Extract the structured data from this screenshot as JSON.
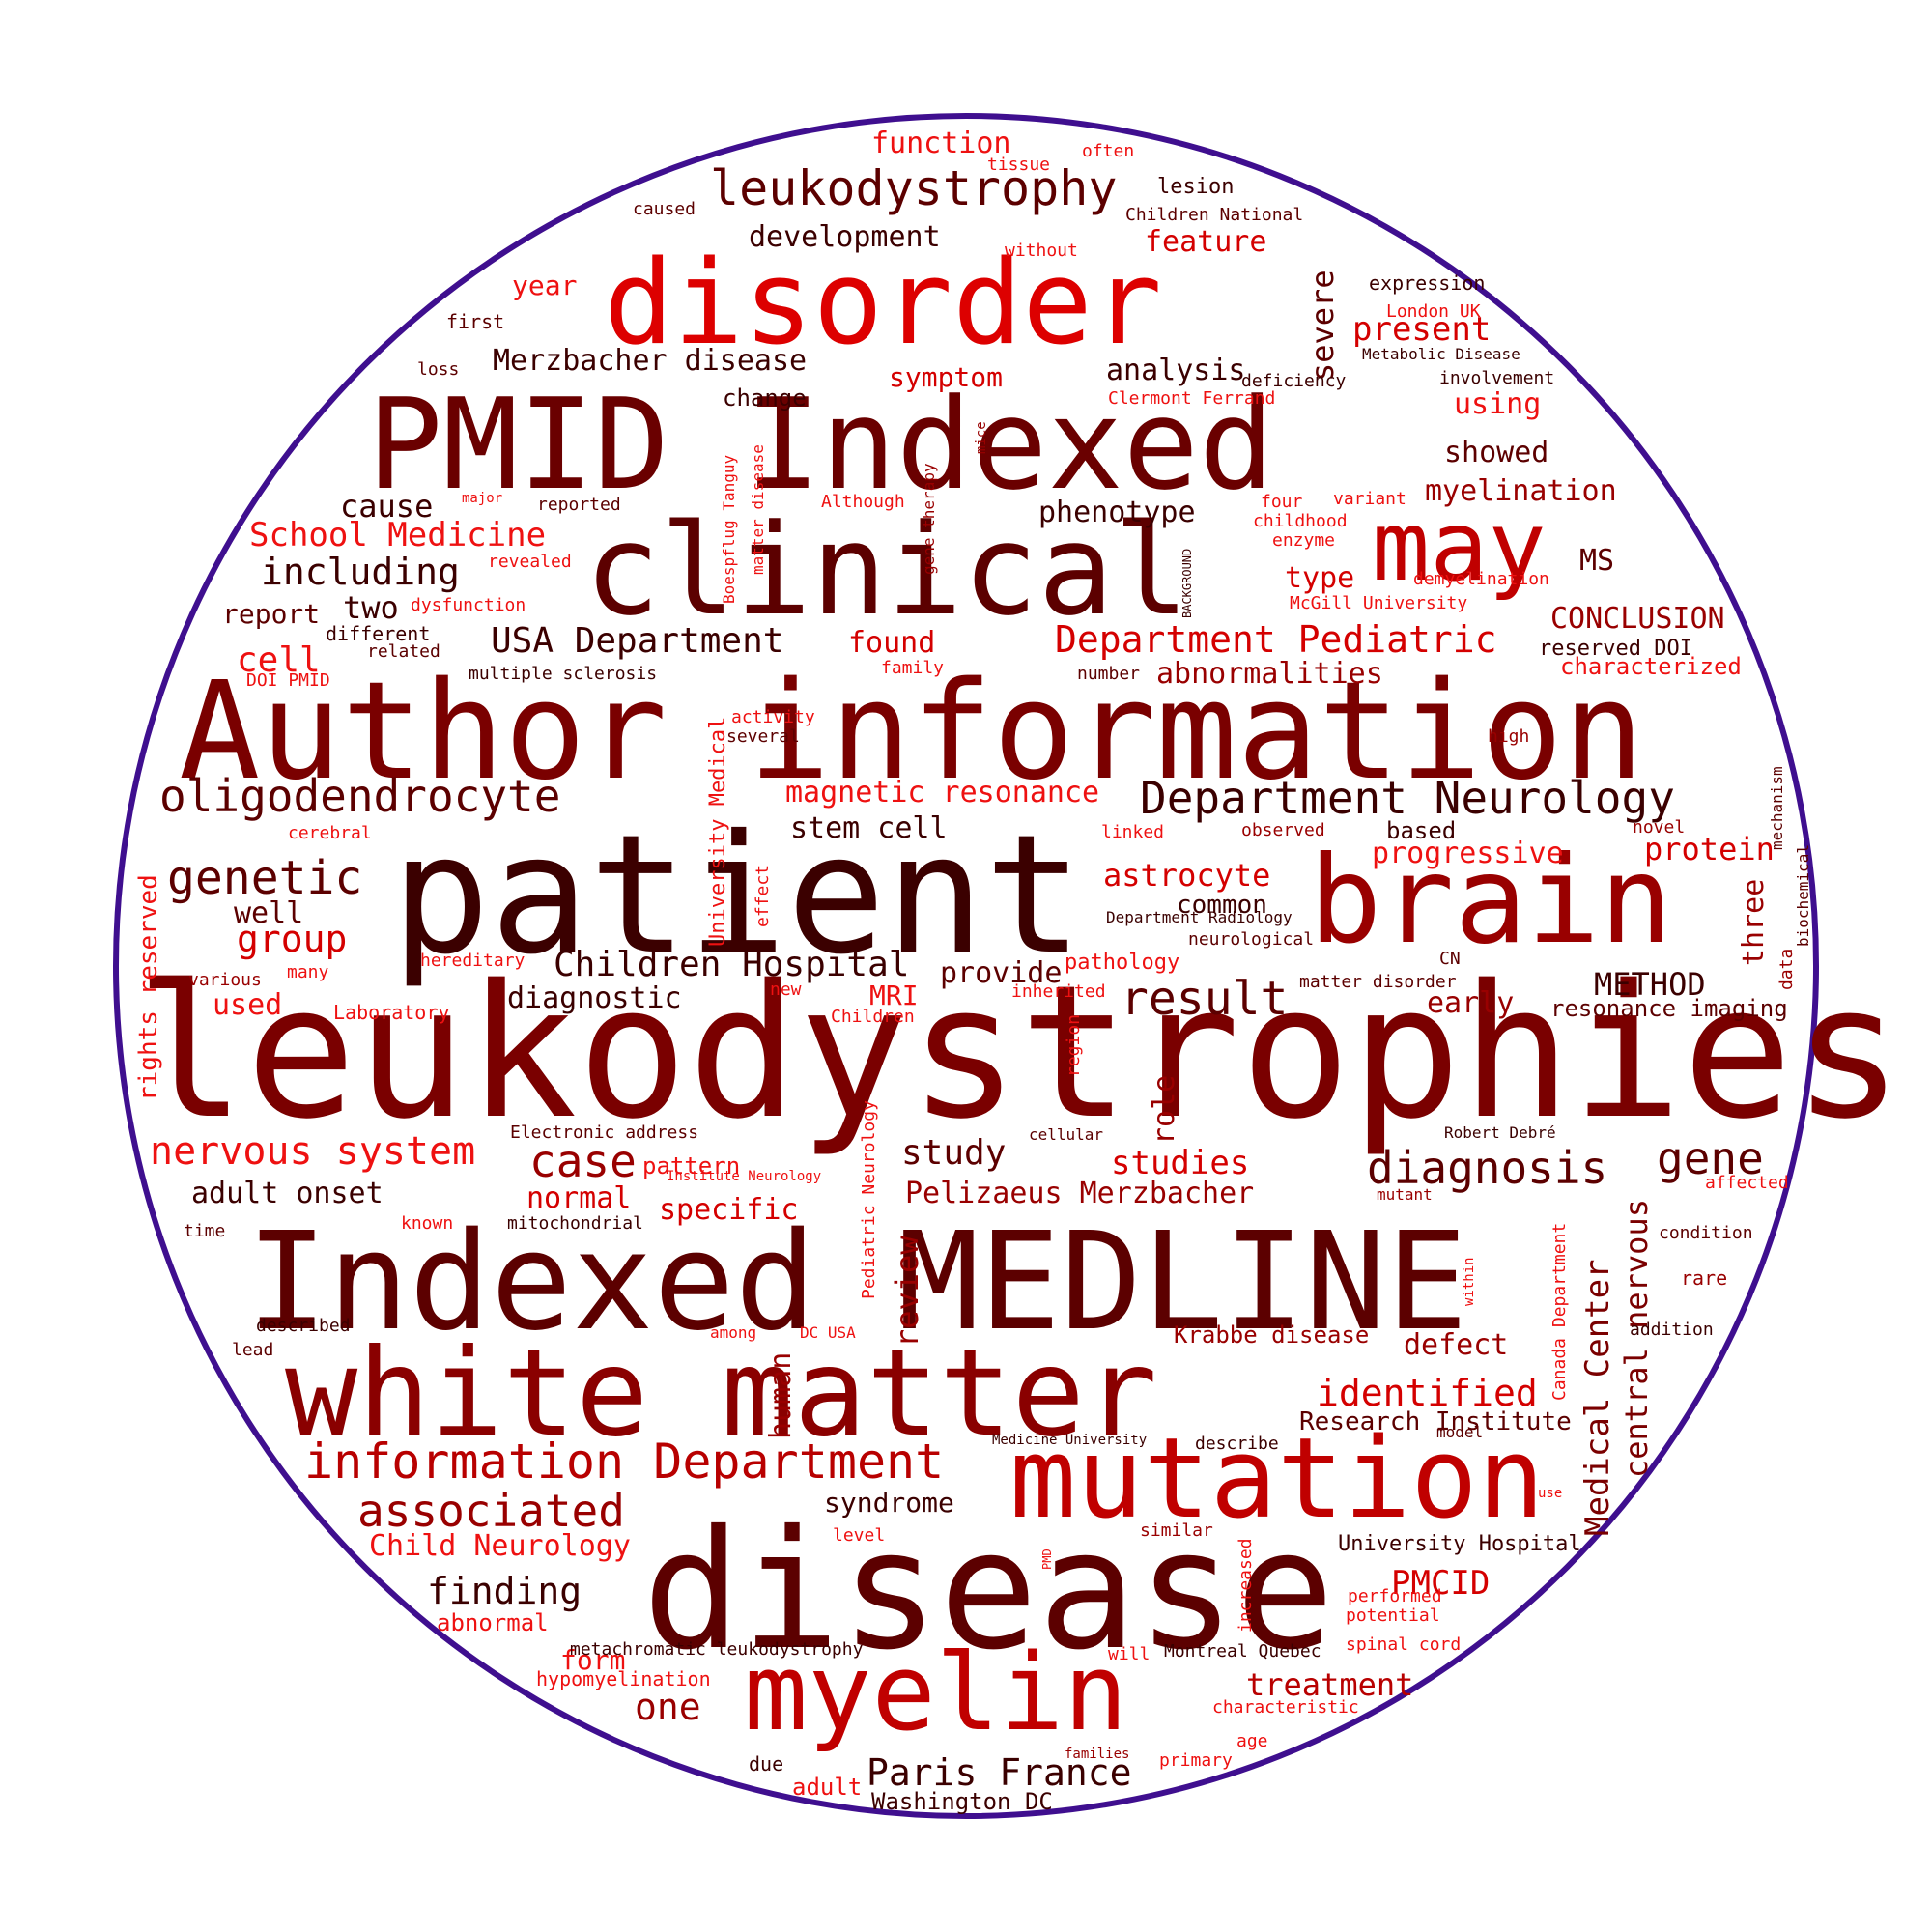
{
  "outline_color": "#3f0f8f",
  "palette": [
    "#3b0000",
    "#5c0000",
    "#7a0000",
    "#990000",
    "#b80000",
    "#d40000",
    "#ee1111",
    "#ff2222"
  ],
  "words": [
    {
      "text": "leukodystrophies",
      "color": "#7a0000"
    },
    {
      "text": "patient",
      "color": "#3b0000"
    },
    {
      "text": "disease",
      "color": "#5c0000"
    },
    {
      "text": "Author information",
      "color": "#7a0000"
    },
    {
      "text": "Indexed MEDLINE",
      "color": "#5c0000"
    },
    {
      "text": "PMID Indexed",
      "color": "#6a0000"
    },
    {
      "text": "clinical",
      "color": "#5c0000"
    },
    {
      "text": "white matter",
      "color": "#8a0000"
    },
    {
      "text": "disorder",
      "color": "#dd0000"
    },
    {
      "text": "brain",
      "color": "#990000"
    },
    {
      "text": "mutation",
      "color": "#c00000"
    },
    {
      "text": "myelin",
      "color": "#c00000"
    },
    {
      "text": "may",
      "color": "#c00000"
    },
    {
      "text": "information Department",
      "color": "#b80000"
    },
    {
      "text": "leukodystrophy",
      "color": "#5c0000"
    },
    {
      "text": "Department Neurology",
      "color": "#3b0000"
    },
    {
      "text": "oligodendrocyte",
      "color": "#5c0000"
    },
    {
      "text": "associated",
      "color": "#990000"
    },
    {
      "text": "diagnosis",
      "color": "#5c0000"
    },
    {
      "text": "genetic",
      "color": "#5c0000"
    },
    {
      "text": "result",
      "color": "#5c0000"
    },
    {
      "text": "nervous system",
      "color": "#ee1111"
    },
    {
      "text": "case",
      "color": "#990000"
    },
    {
      "text": "gene",
      "color": "#5c0000"
    },
    {
      "text": "Department Pediatric",
      "color": "#d40000"
    },
    {
      "text": "Paris France",
      "color": "#3b0000"
    },
    {
      "text": "Children Hospital",
      "color": "#3b0000"
    },
    {
      "text": "USA Department",
      "color": "#3b0000"
    },
    {
      "text": "identified",
      "color": "#d40000"
    },
    {
      "text": "School Medicine",
      "color": "#ee1111"
    },
    {
      "text": "including",
      "color": "#3b0000"
    },
    {
      "text": "finding",
      "color": "#3b0000"
    },
    {
      "text": "one",
      "color": "#990000"
    },
    {
      "text": "study",
      "color": "#5c0000"
    },
    {
      "text": "cell",
      "color": "#ee1111"
    },
    {
      "text": "group",
      "color": "#d40000"
    },
    {
      "text": "Medical Center",
      "color": "#7a0000"
    },
    {
      "text": "central nervous",
      "color": "#7a0000"
    },
    {
      "text": "Merzbacher disease",
      "color": "#3b0000"
    },
    {
      "text": "studies",
      "color": "#d40000"
    },
    {
      "text": "PMCID",
      "color": "#d40000"
    },
    {
      "text": "treatment",
      "color": "#b80000"
    },
    {
      "text": "severe",
      "color": "#5c0000"
    },
    {
      "text": "present",
      "color": "#d40000"
    },
    {
      "text": "progressive",
      "color": "#ee1111"
    },
    {
      "text": "Child Neurology",
      "color": "#ee1111"
    },
    {
      "text": "Pelizaeus Merzbacher",
      "color": "#990000"
    },
    {
      "text": "specific",
      "color": "#d40000"
    },
    {
      "text": "normal",
      "color": "#d40000"
    },
    {
      "text": "adult onset",
      "color": "#3b0000"
    },
    {
      "text": "magnetic resonance",
      "color": "#ee1111"
    },
    {
      "text": "abnormalities",
      "color": "#990000"
    },
    {
      "text": "astrocyte",
      "color": "#d40000"
    },
    {
      "text": "protein",
      "color": "#d40000"
    },
    {
      "text": "diagnostic",
      "color": "#3b0000"
    },
    {
      "text": "METHOD",
      "color": "#3b0000"
    },
    {
      "text": "CONCLUSION",
      "color": "#990000"
    },
    {
      "text": "myelination",
      "color": "#990000"
    },
    {
      "text": "showed",
      "color": "#5c0000"
    },
    {
      "text": "using",
      "color": "#ee1111"
    },
    {
      "text": "phenotype",
      "color": "#3b0000"
    },
    {
      "text": "analysis",
      "color": "#3b0000"
    },
    {
      "text": "function",
      "color": "#ee1111"
    },
    {
      "text": "feature",
      "color": "#d40000"
    },
    {
      "text": "development",
      "color": "#3b0000"
    },
    {
      "text": "symptom",
      "color": "#d40000"
    },
    {
      "text": "cause",
      "color": "#3b0000"
    },
    {
      "text": "two",
      "color": "#3b0000"
    },
    {
      "text": "report",
      "color": "#5c0000"
    },
    {
      "text": "found",
      "color": "#d40000"
    },
    {
      "text": "type",
      "color": "#d40000"
    },
    {
      "text": "MS",
      "color": "#5c0000"
    },
    {
      "text": "well",
      "color": "#5c0000"
    },
    {
      "text": "used",
      "color": "#ee1111"
    },
    {
      "text": "MRI",
      "color": "#ee1111"
    },
    {
      "text": "provide",
      "color": "#5c0000"
    },
    {
      "text": "common",
      "color": "#3b0000"
    },
    {
      "text": "stem cell",
      "color": "#3b0000"
    },
    {
      "text": "early",
      "color": "#990000"
    },
    {
      "text": "defect",
      "color": "#990000"
    },
    {
      "text": "Krabbe disease",
      "color": "#990000"
    },
    {
      "text": "Research Institute",
      "color": "#5c0000"
    },
    {
      "text": "syndrome",
      "color": "#3b0000"
    },
    {
      "text": "form",
      "color": "#ee1111"
    },
    {
      "text": "abnormal",
      "color": "#ee1111"
    },
    {
      "text": "pattern",
      "color": "#ee1111"
    },
    {
      "text": "based",
      "color": "#3b0000"
    },
    {
      "text": "three",
      "color": "#990000"
    },
    {
      "text": "review",
      "color": "#990000"
    },
    {
      "text": "human",
      "color": "#990000"
    },
    {
      "text": "role",
      "color": "#990000"
    },
    {
      "text": "Washington DC",
      "color": "#3b0000"
    },
    {
      "text": "University Hospital",
      "color": "#3b0000"
    },
    {
      "text": "rights reserved",
      "color": "#ee1111"
    },
    {
      "text": "year",
      "color": "#ee1111"
    },
    {
      "text": "adult",
      "color": "#ee1111"
    },
    {
      "text": "change",
      "color": "#3b0000"
    },
    {
      "text": "resonance imaging",
      "color": "#5c0000"
    },
    {
      "text": "reserved DOI",
      "color": "#3b0000"
    },
    {
      "text": "characterized",
      "color": "#ee1111"
    },
    {
      "text": "pathology",
      "color": "#ee1111"
    },
    {
      "text": "University Medical",
      "color": "#ee1111"
    },
    {
      "text": "Pediatric Neurology",
      "color": "#ee1111"
    },
    {
      "text": "Canada Department",
      "color": "#ee1111"
    },
    {
      "text": "lesion",
      "color": "#3b0000"
    },
    {
      "text": "Children National",
      "color": "#5c0000"
    },
    {
      "text": "expression",
      "color": "#3b0000"
    },
    {
      "text": "London UK",
      "color": "#ee1111"
    },
    {
      "text": "Metabolic Disease",
      "color": "#3b0000"
    },
    {
      "text": "involvement",
      "color": "#3b0000"
    },
    {
      "text": "deficiency",
      "color": "#3b0000"
    },
    {
      "text": "Clermont Ferrand",
      "color": "#ee1111"
    },
    {
      "text": "childhood",
      "color": "#ee1111"
    },
    {
      "text": "variant",
      "color": "#ee1111"
    },
    {
      "text": "four",
      "color": "#ee1111"
    },
    {
      "text": "enzyme",
      "color": "#ee1111"
    },
    {
      "text": "demyelination",
      "color": "#ee1111"
    },
    {
      "text": "McGill University",
      "color": "#ee1111"
    },
    {
      "text": "first",
      "color": "#5c0000"
    },
    {
      "text": "loss",
      "color": "#5c0000"
    },
    {
      "text": "caused",
      "color": "#5c0000"
    },
    {
      "text": "without",
      "color": "#ee1111"
    },
    {
      "text": "tissue",
      "color": "#ee1111"
    },
    {
      "text": "often",
      "color": "#ee1111"
    },
    {
      "text": "major",
      "color": "#ee1111"
    },
    {
      "text": "reported",
      "color": "#5c0000"
    },
    {
      "text": "Although",
      "color": "#ee1111"
    },
    {
      "text": "revealed",
      "color": "#ee1111"
    },
    {
      "text": "dysfunction",
      "color": "#ee1111"
    },
    {
      "text": "different",
      "color": "#3b0000"
    },
    {
      "text": "related",
      "color": "#5c0000"
    },
    {
      "text": "DOI PMID",
      "color": "#ee1111"
    },
    {
      "text": "multiple sclerosis",
      "color": "#3b0000"
    },
    {
      "text": "family",
      "color": "#ee1111"
    },
    {
      "text": "number",
      "color": "#5c0000"
    },
    {
      "text": "activity",
      "color": "#ee1111"
    },
    {
      "text": "several",
      "color": "#5c0000"
    },
    {
      "text": "high",
      "color": "#990000"
    },
    {
      "text": "mechanism",
      "color": "#5c0000"
    },
    {
      "text": "biochemical",
      "color": "#5c0000"
    },
    {
      "text": "data",
      "color": "#990000"
    },
    {
      "text": "novel",
      "color": "#990000"
    },
    {
      "text": "observed",
      "color": "#990000"
    },
    {
      "text": "linked",
      "color": "#ee1111"
    },
    {
      "text": "cerebral",
      "color": "#ee1111"
    },
    {
      "text": "Department Radiology",
      "color": "#3b0000"
    },
    {
      "text": "neurological",
      "color": "#5c0000"
    },
    {
      "text": "CN",
      "color": "#5c0000"
    },
    {
      "text": "matter disorder",
      "color": "#5c0000"
    },
    {
      "text": "inherited",
      "color": "#ee1111"
    },
    {
      "text": "new",
      "color": "#ee1111"
    },
    {
      "text": "Children",
      "color": "#ee1111"
    },
    {
      "text": "hereditary",
      "color": "#ee1111"
    },
    {
      "text": "various",
      "color": "#990000"
    },
    {
      "text": "many",
      "color": "#ee1111"
    },
    {
      "text": "Laboratory",
      "color": "#ee1111"
    },
    {
      "text": "effect",
      "color": "#ee1111"
    },
    {
      "text": "region",
      "color": "#ee1111"
    },
    {
      "text": "Boespflug Tanguy",
      "color": "#ee1111"
    },
    {
      "text": "matter disease",
      "color": "#ee1111"
    },
    {
      "text": "gene therapy",
      "color": "#990000"
    },
    {
      "text": "mice",
      "color": "#990000"
    },
    {
      "text": "BACKGROUND",
      "color": "#3b0000"
    },
    {
      "text": "Electronic address",
      "color": "#5c0000"
    },
    {
      "text": "cellular",
      "color": "#5c0000"
    },
    {
      "text": "Institute Neurology",
      "color": "#ee1111"
    },
    {
      "text": "Robert Debré",
      "color": "#3b0000"
    },
    {
      "text": "affected",
      "color": "#ee1111"
    },
    {
      "text": "mutant",
      "color": "#990000"
    },
    {
      "text": "condition",
      "color": "#5c0000"
    },
    {
      "text": "rare",
      "color": "#990000"
    },
    {
      "text": "within",
      "color": "#ee1111"
    },
    {
      "text": "addition",
      "color": "#3b0000"
    },
    {
      "text": "time",
      "color": "#5c0000"
    },
    {
      "text": "known",
      "color": "#ee1111"
    },
    {
      "text": "mitochondrial",
      "color": "#3b0000"
    },
    {
      "text": "described",
      "color": "#3b0000"
    },
    {
      "text": "lead",
      "color": "#5c0000"
    },
    {
      "text": "among",
      "color": "#ee1111"
    },
    {
      "text": "DC USA",
      "color": "#ee1111"
    },
    {
      "text": "Medicine University",
      "color": "#3b0000"
    },
    {
      "text": "describe",
      "color": "#3b0000"
    },
    {
      "text": "model",
      "color": "#5c0000"
    },
    {
      "text": "use",
      "color": "#ee1111"
    },
    {
      "text": "level",
      "color": "#ee1111"
    },
    {
      "text": "similar",
      "color": "#990000"
    },
    {
      "text": "PMD",
      "color": "#ee1111"
    },
    {
      "text": "increased",
      "color": "#ee1111"
    },
    {
      "text": "performed",
      "color": "#ee1111"
    },
    {
      "text": "potential",
      "color": "#ee1111"
    },
    {
      "text": "metachromatic leukodystrophy",
      "color": "#3b0000"
    },
    {
      "text": "will",
      "color": "#ee1111"
    },
    {
      "text": "Montreal Quebec",
      "color": "#3b0000"
    },
    {
      "text": "spinal cord",
      "color": "#ee1111"
    },
    {
      "text": "hypomyelination",
      "color": "#ee1111"
    },
    {
      "text": "characteristic",
      "color": "#ee1111"
    },
    {
      "text": "families",
      "color": "#990000"
    },
    {
      "text": "age",
      "color": "#ee1111"
    },
    {
      "text": "primary",
      "color": "#ee1111"
    },
    {
      "text": "due",
      "color": "#3b0000"
    }
  ]
}
